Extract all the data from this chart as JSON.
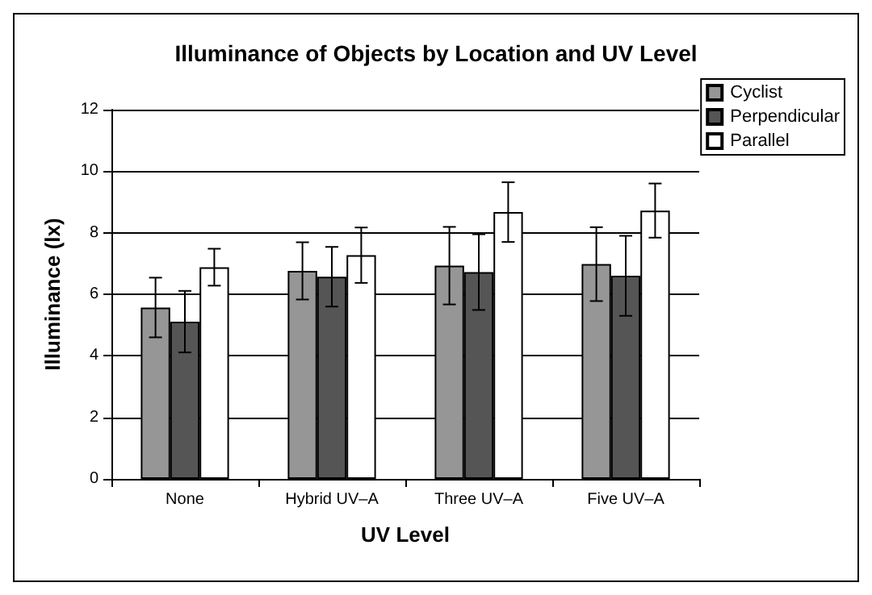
{
  "chart_data": {
    "type": "bar",
    "title": "Illuminance of Objects by Location and UV Level",
    "xlabel": "UV Level",
    "ylabel": "Illuminance (lx)",
    "categories": [
      "None",
      "Hybrid UV–A",
      "Three UV–A",
      "Five UV–A"
    ],
    "series": [
      {
        "name": "Cyclist",
        "color": "#969696",
        "values": [
          5.57,
          6.76,
          6.93,
          6.98
        ],
        "errors": [
          0.97,
          0.93,
          1.26,
          1.2
        ]
      },
      {
        "name": "Perpendicular",
        "color": "#555555",
        "values": [
          5.11,
          6.57,
          6.72,
          6.6
        ],
        "errors": [
          1.0,
          0.97,
          1.23,
          1.3
        ]
      },
      {
        "name": "Parallel",
        "color": "#ffffff",
        "values": [
          6.88,
          7.27,
          8.67,
          8.72
        ],
        "errors": [
          0.6,
          0.9,
          0.97,
          0.88
        ]
      }
    ],
    "ylim": [
      0,
      12
    ],
    "yticks": [
      0,
      2,
      4,
      6,
      8,
      10,
      12
    ],
    "grid": "y",
    "legend": "top right"
  }
}
